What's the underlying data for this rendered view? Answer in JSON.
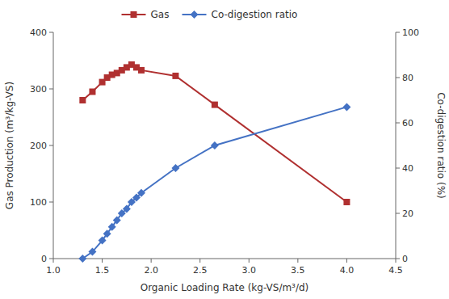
{
  "chart_data": {
    "type": "line",
    "xlabel": "Organic Loading Rate (kg-VS/m³/d)",
    "ylabel": "Gas Production (m³/kg-VS)",
    "y2label": "Co-digestion ratio (%)",
    "x": [
      1.3,
      1.4,
      1.5,
      1.55,
      1.6,
      1.65,
      1.7,
      1.75,
      1.8,
      1.85,
      1.9,
      2.25,
      2.65,
      4.0
    ],
    "series": [
      {
        "name": "Gas",
        "color": "#b03030",
        "marker": "square",
        "line_style": "solid",
        "values": [
          280,
          295,
          312,
          320,
          325,
          328,
          333,
          338,
          343,
          338,
          333,
          323,
          272,
          100
        ]
      },
      {
        "name": "Co-digestion ratio",
        "color": "#4472c4",
        "marker": "diamond",
        "line_style": "solid",
        "axis": "y2",
        "values": [
          0,
          3,
          8,
          11,
          14,
          17,
          20,
          22,
          25,
          27,
          29,
          40,
          50,
          67
        ]
      }
    ],
    "xlim": [
      1,
      4.5
    ],
    "xticks": [
      {
        "value": 1,
        "label": "1.0"
      },
      1.5,
      {
        "value": 2,
        "label": "2.0"
      },
      2.5,
      {
        "value": 3,
        "label": "3.0"
      },
      3.5,
      {
        "value": 4,
        "label": "4.0"
      },
      4.5
    ],
    "ylim": [
      0,
      400
    ],
    "yticks": [
      0,
      100,
      200,
      300,
      400
    ],
    "y2lim": [
      0,
      100
    ],
    "y2ticks": [
      0,
      20,
      40,
      60,
      80,
      100
    ],
    "grid": false,
    "legend": "top"
  }
}
